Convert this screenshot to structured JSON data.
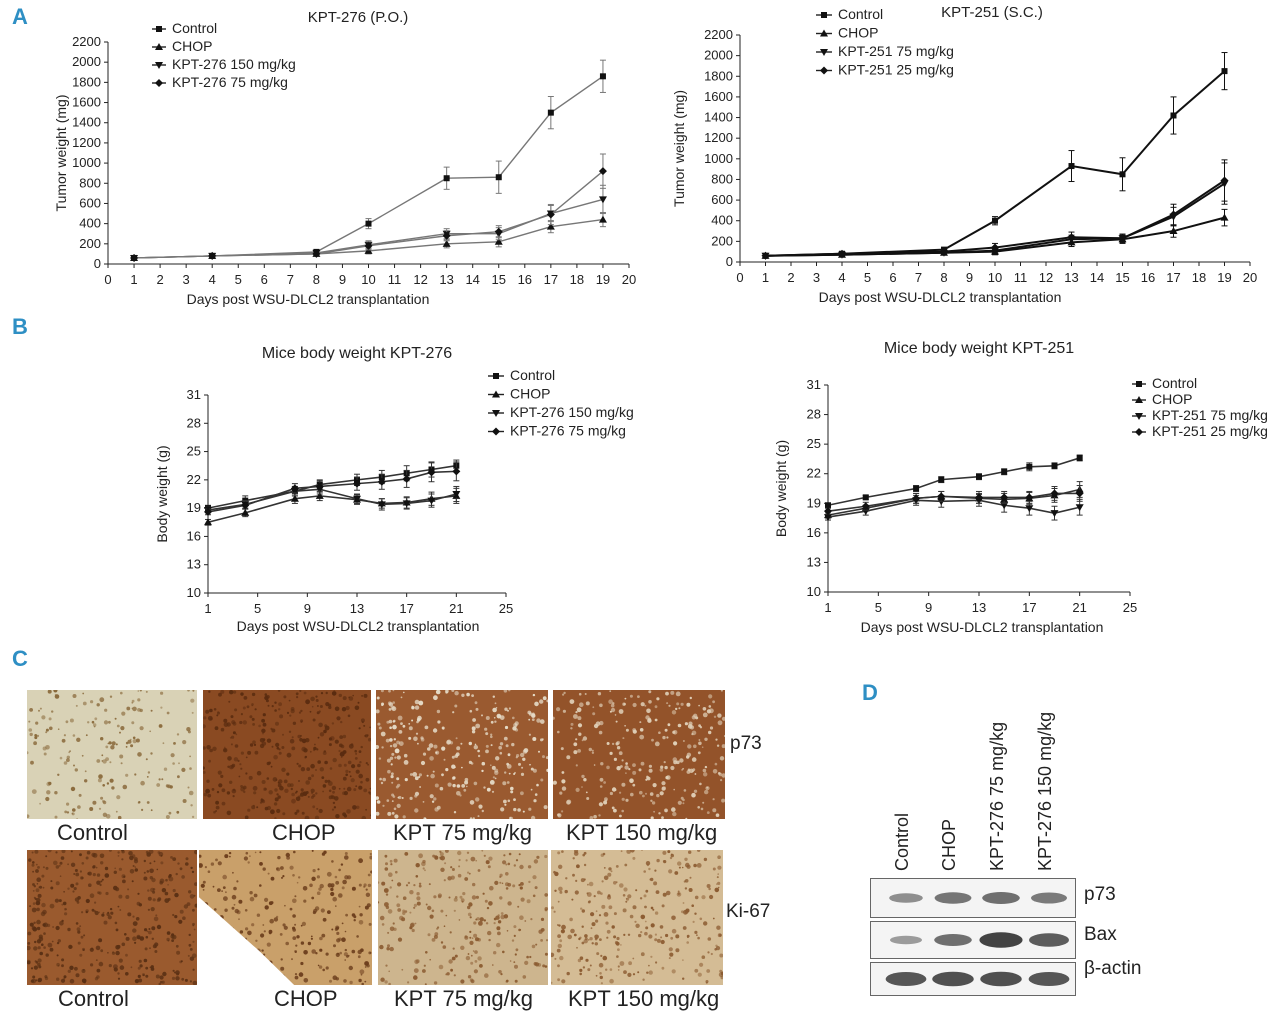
{
  "panels": {
    "a": "A",
    "b": "B",
    "c": "C",
    "d": "D"
  },
  "chart_data": [
    {
      "type": "line",
      "title": "KPT-276 (P.O.)",
      "xlabel": "Days post WSU-DLCL2 transplantation",
      "ylabel": "Tumor weight (mg)",
      "xlim": [
        0,
        20
      ],
      "ylim": [
        0,
        2200
      ],
      "xticks": [
        0,
        1,
        2,
        3,
        4,
        5,
        6,
        7,
        8,
        9,
        10,
        11,
        12,
        13,
        14,
        15,
        16,
        17,
        18,
        19,
        20
      ],
      "yticks": [
        0,
        200,
        400,
        600,
        800,
        1000,
        1200,
        1400,
        1600,
        1800,
        2000,
        2200
      ],
      "legend_position": "top-left",
      "x": [
        1,
        4,
        8,
        10,
        13,
        15,
        17,
        19
      ],
      "series": [
        {
          "name": "Control",
          "marker": "square",
          "values": [
            60,
            80,
            120,
            400,
            850,
            860,
            1500,
            1860
          ],
          "errors": [
            0,
            0,
            0,
            50,
            110,
            160,
            160,
            160
          ]
        },
        {
          "name": "CHOP",
          "marker": "triangle-up",
          "values": [
            60,
            80,
            100,
            130,
            200,
            220,
            370,
            440
          ],
          "errors": [
            0,
            0,
            0,
            30,
            40,
            50,
            60,
            70
          ]
        },
        {
          "name": "KPT-276 150 mg/kg",
          "marker": "triangle-down",
          "values": [
            60,
            80,
            110,
            190,
            300,
            300,
            500,
            640
          ],
          "errors": [
            0,
            0,
            0,
            40,
            50,
            60,
            80,
            140
          ]
        },
        {
          "name": "KPT-276 75 mg/kg",
          "marker": "diamond",
          "values": [
            60,
            80,
            100,
            180,
            280,
            320,
            490,
            920
          ],
          "errors": [
            0,
            0,
            0,
            40,
            50,
            60,
            100,
            170
          ]
        }
      ]
    },
    {
      "type": "line",
      "title": "KPT-251 (S.C.)",
      "xlabel": "Days post WSU-DLCL2 transplantation",
      "ylabel": "Tumor weight (mg)",
      "xlim": [
        0,
        20
      ],
      "ylim": [
        0,
        2200
      ],
      "xticks": [
        0,
        1,
        2,
        3,
        4,
        5,
        6,
        7,
        8,
        9,
        10,
        11,
        12,
        13,
        14,
        15,
        16,
        17,
        18,
        19,
        20
      ],
      "yticks": [
        0,
        200,
        400,
        600,
        800,
        1000,
        1200,
        1400,
        1600,
        1800,
        2000,
        2200
      ],
      "legend_position": "top-left",
      "x": [
        1,
        4,
        8,
        10,
        13,
        15,
        17,
        19
      ],
      "series": [
        {
          "name": "Control",
          "marker": "square",
          "values": [
            60,
            80,
            120,
            400,
            930,
            850,
            1420,
            1850
          ],
          "errors": [
            0,
            0,
            0,
            40,
            150,
            160,
            180,
            180
          ]
        },
        {
          "name": "CHOP",
          "marker": "triangle-up",
          "values": [
            60,
            70,
            90,
            100,
            190,
            220,
            300,
            430
          ],
          "errors": [
            0,
            0,
            0,
            30,
            40,
            40,
            60,
            80
          ]
        },
        {
          "name": "KPT-251 75 mg/kg",
          "marker": "triangle-down",
          "values": [
            60,
            70,
            90,
            110,
            220,
            230,
            440,
            760
          ],
          "errors": [
            0,
            0,
            0,
            30,
            40,
            40,
            90,
            200
          ]
        },
        {
          "name": "KPT-251 25 mg/kg",
          "marker": "diamond",
          "values": [
            60,
            80,
            100,
            140,
            240,
            230,
            460,
            790
          ],
          "errors": [
            0,
            0,
            0,
            40,
            50,
            40,
            100,
            200
          ]
        }
      ]
    },
    {
      "type": "line",
      "title": "Mice body weight KPT-276",
      "xlabel": "Days post WSU-DLCL2 transplantation",
      "ylabel": "Body weight (g)",
      "xlim": [
        1,
        25
      ],
      "ylim": [
        10,
        31
      ],
      "xticks": [
        1,
        5,
        9,
        13,
        17,
        21,
        25
      ],
      "yticks": [
        10,
        13,
        16,
        19,
        22,
        25,
        28,
        31
      ],
      "legend_position": "top-right",
      "x": [
        1,
        4,
        8,
        10,
        13,
        15,
        17,
        19,
        21
      ],
      "series": [
        {
          "name": "Control",
          "marker": "square",
          "values": [
            19,
            19.8,
            20.8,
            21.5,
            22,
            22.3,
            22.7,
            23.1,
            23.5
          ],
          "errors": [
            0.3,
            0.5,
            0.5,
            0.5,
            0.6,
            0.7,
            0.8,
            0.8,
            0.6
          ]
        },
        {
          "name": "CHOP",
          "marker": "triangle-up",
          "values": [
            17.5,
            18.5,
            20,
            20.3,
            19.9,
            19.5,
            19.6,
            20,
            20.3
          ],
          "errors": [
            0.3,
            0.4,
            0.5,
            0.5,
            0.5,
            0.5,
            0.6,
            0.7,
            0.8
          ]
        },
        {
          "name": "KPT-276 150 mg/kg",
          "marker": "triangle-down",
          "values": [
            18.8,
            19.4,
            20.8,
            21,
            20,
            19.4,
            19.5,
            19.8,
            20.5
          ],
          "errors": [
            0.3,
            0.4,
            0.5,
            0.5,
            0.5,
            0.6,
            0.6,
            0.7,
            0.8
          ]
        },
        {
          "name": "KPT-276 75 mg/kg",
          "marker": "diamond",
          "values": [
            18.6,
            19.3,
            21.1,
            21.3,
            21.6,
            21.8,
            22.1,
            22.8,
            22.9
          ],
          "errors": [
            0.3,
            0.4,
            0.5,
            0.6,
            0.7,
            0.8,
            0.9,
            1.0,
            1.0
          ]
        }
      ]
    },
    {
      "type": "line",
      "title": "Mice body weight KPT-251",
      "xlabel": "Days post WSU-DLCL2 transplantation",
      "ylabel": "Body weight (g)",
      "xlim": [
        1,
        25
      ],
      "ylim": [
        10,
        31
      ],
      "xticks": [
        1,
        5,
        9,
        13,
        17,
        21,
        25
      ],
      "yticks": [
        10,
        13,
        16,
        19,
        22,
        25,
        28,
        31
      ],
      "legend_position": "top-right",
      "x": [
        1,
        4,
        8,
        10,
        13,
        15,
        17,
        19,
        21
      ],
      "series": [
        {
          "name": "Control",
          "marker": "square",
          "values": [
            18.8,
            19.6,
            20.5,
            21.4,
            21.7,
            22.2,
            22.7,
            22.8,
            23.6
          ],
          "errors": [
            0.2,
            0.2,
            0.3,
            0.3,
            0.3,
            0.3,
            0.4,
            0.3,
            0.3
          ]
        },
        {
          "name": "CHOP",
          "marker": "triangle-up",
          "values": [
            17.8,
            18.5,
            19.5,
            19.7,
            19.5,
            19.4,
            19.5,
            19.8,
            20.4
          ],
          "errors": [
            0.3,
            0.3,
            0.5,
            0.5,
            0.5,
            0.6,
            0.6,
            0.7,
            0.8
          ]
        },
        {
          "name": "KPT-251 75 mg/kg",
          "marker": "triangle-down",
          "values": [
            17.6,
            18.2,
            19.3,
            19.2,
            19.3,
            18.8,
            18.5,
            18,
            18.6
          ],
          "errors": [
            0.3,
            0.4,
            0.5,
            0.6,
            0.6,
            0.7,
            0.7,
            0.7,
            0.8
          ]
        },
        {
          "name": "KPT-251 25 mg/kg",
          "marker": "diamond",
          "values": [
            18.2,
            18.7,
            19.5,
            19.7,
            19.6,
            19.6,
            19.6,
            20,
            20
          ],
          "errors": [
            0.3,
            0.4,
            0.5,
            0.5,
            0.6,
            0.6,
            0.6,
            0.7,
            0.8
          ]
        }
      ]
    }
  ],
  "ihc": {
    "rows": [
      {
        "marker": "p73",
        "tiles": [
          {
            "label": "Control",
            "base": "#d9d2b6",
            "dot": "#8a6a3c",
            "density": 0.35
          },
          {
            "label": "CHOP",
            "base": "#8a4a22",
            "dot": "#5a2c10",
            "density": 0.7
          },
          {
            "label": "KPT 75 mg/kg",
            "base": "#9a5a30",
            "dot": "#e6dcc8",
            "density": 0.55
          },
          {
            "label": "KPT 150 mg/kg",
            "base": "#93532a",
            "dot": "#e0d0b8",
            "density": 0.5
          }
        ]
      },
      {
        "marker": "Ki-67",
        "tiles": [
          {
            "label": "Control",
            "base": "#9a5a2e",
            "dot": "#5a3014",
            "density": 0.7
          },
          {
            "label": "CHOP",
            "base": "#c9a06a",
            "dot": "#6b3d1c",
            "density": 0.5
          },
          {
            "label": "KPT 75 mg/kg",
            "base": "#cdb58e",
            "dot": "#8a5a30",
            "density": 0.5
          },
          {
            "label": "KPT 150 mg/kg",
            "base": "#d4bc95",
            "dot": "#8c5c32",
            "density": 0.5
          }
        ]
      }
    ]
  },
  "western": {
    "lanes": [
      "Control",
      "CHOP",
      "KPT-276 75 mg/kg",
      "KPT-276 150 mg/kg"
    ],
    "blots": [
      {
        "label": "p73",
        "intensity": [
          0.35,
          0.55,
          0.6,
          0.5
        ]
      },
      {
        "label": "Bax",
        "intensity": [
          0.25,
          0.6,
          0.95,
          0.75
        ]
      },
      {
        "label": "β-actin",
        "intensity": [
          0.8,
          0.85,
          0.85,
          0.8
        ]
      }
    ]
  }
}
